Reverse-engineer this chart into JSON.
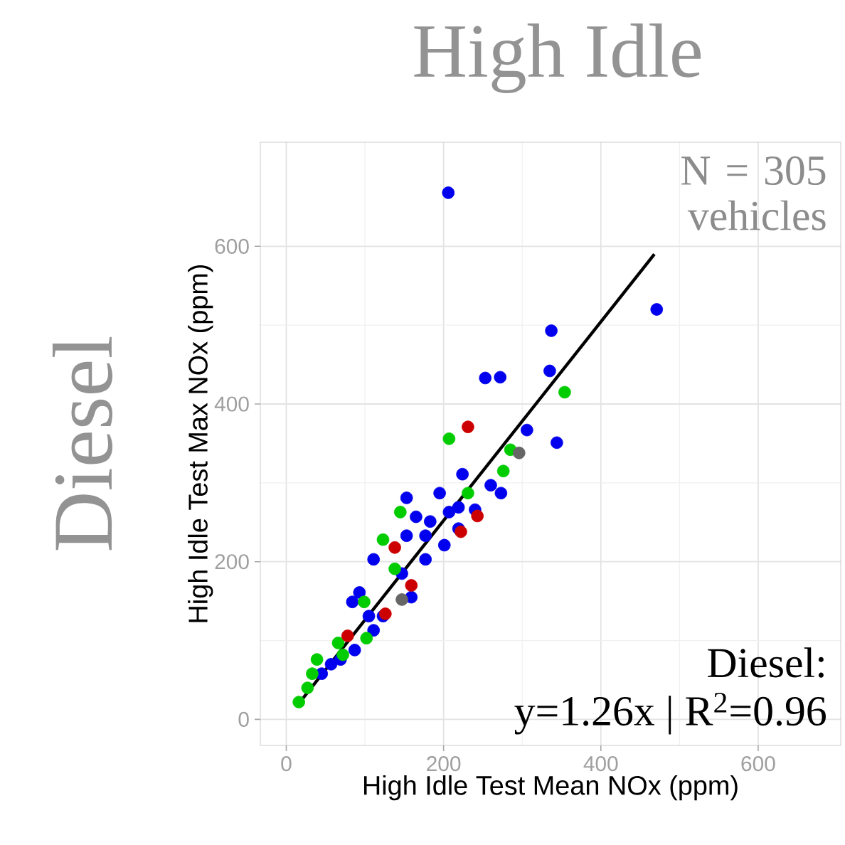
{
  "chart_data": {
    "type": "scatter",
    "title": "High Idle",
    "xlabel": "High Idle Test Mean NOx (ppm)",
    "ylabel": "High Idle Test Max NOx (ppm)",
    "annotations": [
      "Diesel",
      "N = 305 vehicles",
      "Diesel:",
      "y=1.26x | R$^{2}$=0.96"
    ],
    "xlim": [
      -33,
      705
    ],
    "ylim": [
      -33,
      732
    ],
    "xticks": [
      0,
      200,
      400,
      600
    ],
    "yticks": [
      0,
      200,
      400,
      600
    ],
    "grid": true,
    "series": [
      {
        "marker": "circle",
        "color": "#0000ee",
        "x": [
          206,
          471,
          337,
          253,
          272,
          335,
          306,
          344,
          224,
          260,
          273,
          195,
          153,
          240,
          165,
          219,
          201,
          153,
          177,
          111,
          93,
          84,
          123,
          111,
          87,
          57,
          147,
          159,
          183,
          207,
          69,
          45,
          105,
          177,
          219
        ],
        "values": [
          668,
          520,
          493,
          433,
          434,
          442,
          367,
          351,
          311,
          297,
          287,
          287,
          281,
          266,
          257,
          242,
          221,
          233,
          203,
          203,
          161,
          149,
          131,
          113,
          88,
          70,
          185,
          155,
          251,
          263,
          76,
          58,
          131,
          233,
          269
        ]
      },
      {
        "marker": "circle",
        "color": "#00cc00",
        "x": [
          354,
          207,
          285,
          276,
          145,
          123,
          138,
          99,
          102,
          66,
          39,
          33,
          16,
          27,
          72,
          231
        ],
        "values": [
          415,
          356,
          342,
          315,
          263,
          228,
          191,
          149,
          103,
          97,
          76,
          58,
          22,
          40,
          82,
          287
        ]
      },
      {
        "marker": "circle",
        "color": "#cc0000",
        "x": [
          231,
          243,
          222,
          159,
          126,
          138,
          78
        ],
        "values": [
          371,
          258,
          238,
          170,
          134,
          218,
          106
        ]
      },
      {
        "marker": "circle",
        "color": "#666666",
        "x": [
          296,
          147
        ],
        "values": [
          338,
          152
        ]
      },
      {
        "type": "line",
        "marker": "none",
        "color": "#000000",
        "x": [
          15,
          468
        ],
        "values": [
          19,
          590
        ]
      }
    ]
  }
}
